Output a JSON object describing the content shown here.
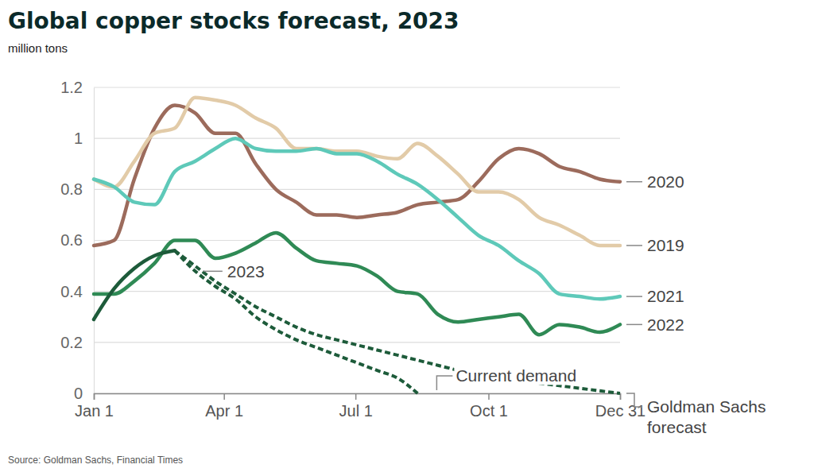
{
  "chart_data": {
    "type": "line",
    "title": "Global copper stocks forecast, 2023",
    "subtitle": "million tons",
    "source": "Source: Goldman Sachs, Financial Times",
    "x": [
      1,
      15,
      29,
      43,
      57,
      71,
      85,
      99,
      113,
      127,
      141,
      155,
      169,
      183,
      197,
      211,
      225,
      239,
      253,
      267,
      281,
      295,
      309,
      323,
      337,
      351,
      365
    ],
    "xlim": [
      1,
      365
    ],
    "xticks": [
      {
        "value": 1,
        "label": "Jan 1"
      },
      {
        "value": 91,
        "label": "Apr 1"
      },
      {
        "value": 182,
        "label": "Jul 1"
      },
      {
        "value": 274,
        "label": "Oct 1"
      },
      {
        "value": 365,
        "label": "Dec 31"
      }
    ],
    "ylim": [
      0,
      1.2
    ],
    "yticks": [
      0,
      0.2,
      0.4,
      0.6,
      0.8,
      1,
      1.2
    ],
    "grid": true,
    "series": [
      {
        "name": "2020",
        "color": "#9c6b5c",
        "line_style": "solid",
        "values": [
          0.58,
          0.6,
          0.84,
          1.04,
          1.13,
          1.1,
          1.02,
          1.02,
          0.9,
          0.8,
          0.75,
          0.7,
          0.7,
          0.69,
          0.7,
          0.71,
          0.74,
          0.75,
          0.76,
          0.83,
          0.92,
          0.96,
          0.94,
          0.89,
          0.87,
          0.84,
          0.83
        ]
      },
      {
        "name": "2019",
        "color": "#e2cba8",
        "line_style": "solid",
        "values": [
          0.84,
          0.81,
          0.91,
          1.02,
          1.04,
          1.16,
          1.15,
          1.13,
          1.08,
          1.04,
          0.96,
          0.96,
          0.95,
          0.95,
          0.93,
          0.92,
          0.98,
          0.93,
          0.86,
          0.79,
          0.79,
          0.76,
          0.69,
          0.66,
          0.62,
          0.58,
          0.58
        ]
      },
      {
        "name": "2021",
        "color": "#5ec9b9",
        "line_style": "solid",
        "values": [
          0.84,
          0.81,
          0.75,
          0.74,
          0.87,
          0.91,
          0.96,
          1.0,
          0.96,
          0.95,
          0.95,
          0.96,
          0.94,
          0.94,
          0.91,
          0.86,
          0.82,
          0.76,
          0.69,
          0.62,
          0.58,
          0.52,
          0.47,
          0.39,
          0.38,
          0.37,
          0.38
        ]
      },
      {
        "name": "2022",
        "color": "#2f8a55",
        "line_style": "solid",
        "values": [
          0.39,
          0.39,
          0.44,
          0.51,
          0.6,
          0.6,
          0.53,
          0.55,
          0.59,
          0.63,
          0.57,
          0.52,
          0.51,
          0.5,
          0.46,
          0.4,
          0.39,
          0.31,
          0.28,
          0.29,
          0.3,
          0.31,
          0.23,
          0.27,
          0.26,
          0.24,
          0.27
        ]
      },
      {
        "name": "Current demand",
        "color": "#1d5b3a",
        "line_style": "dashed",
        "values": [
          null,
          null,
          null,
          null,
          0.56,
          0.48,
          0.42,
          0.37,
          0.3,
          0.25,
          0.21,
          0.18,
          0.15,
          0.12,
          0.09,
          0.06,
          0.0,
          null,
          null,
          null,
          null,
          null,
          null,
          null,
          null,
          null,
          null
        ]
      },
      {
        "name": "Goldman Sachs forecast",
        "color": "#1d5b3a",
        "line_style": "dashed",
        "values": [
          null,
          null,
          null,
          null,
          0.56,
          0.5,
          0.44,
          0.39,
          0.34,
          0.3,
          0.26,
          0.23,
          0.21,
          0.19,
          0.17,
          0.15,
          0.13,
          0.11,
          0.09,
          0.07,
          0.06,
          0.05,
          0.04,
          0.03,
          0.02,
          0.01,
          0.0
        ]
      },
      {
        "name": "2023",
        "color": "#1d5b3a",
        "line_style": "solid",
        "values": [
          0.29,
          0.41,
          0.49,
          0.54,
          0.56,
          null,
          null,
          null,
          null,
          null,
          null,
          null,
          null,
          null,
          null,
          null,
          null,
          null,
          null,
          null,
          null,
          null,
          null,
          null,
          null,
          null,
          null
        ]
      }
    ]
  }
}
